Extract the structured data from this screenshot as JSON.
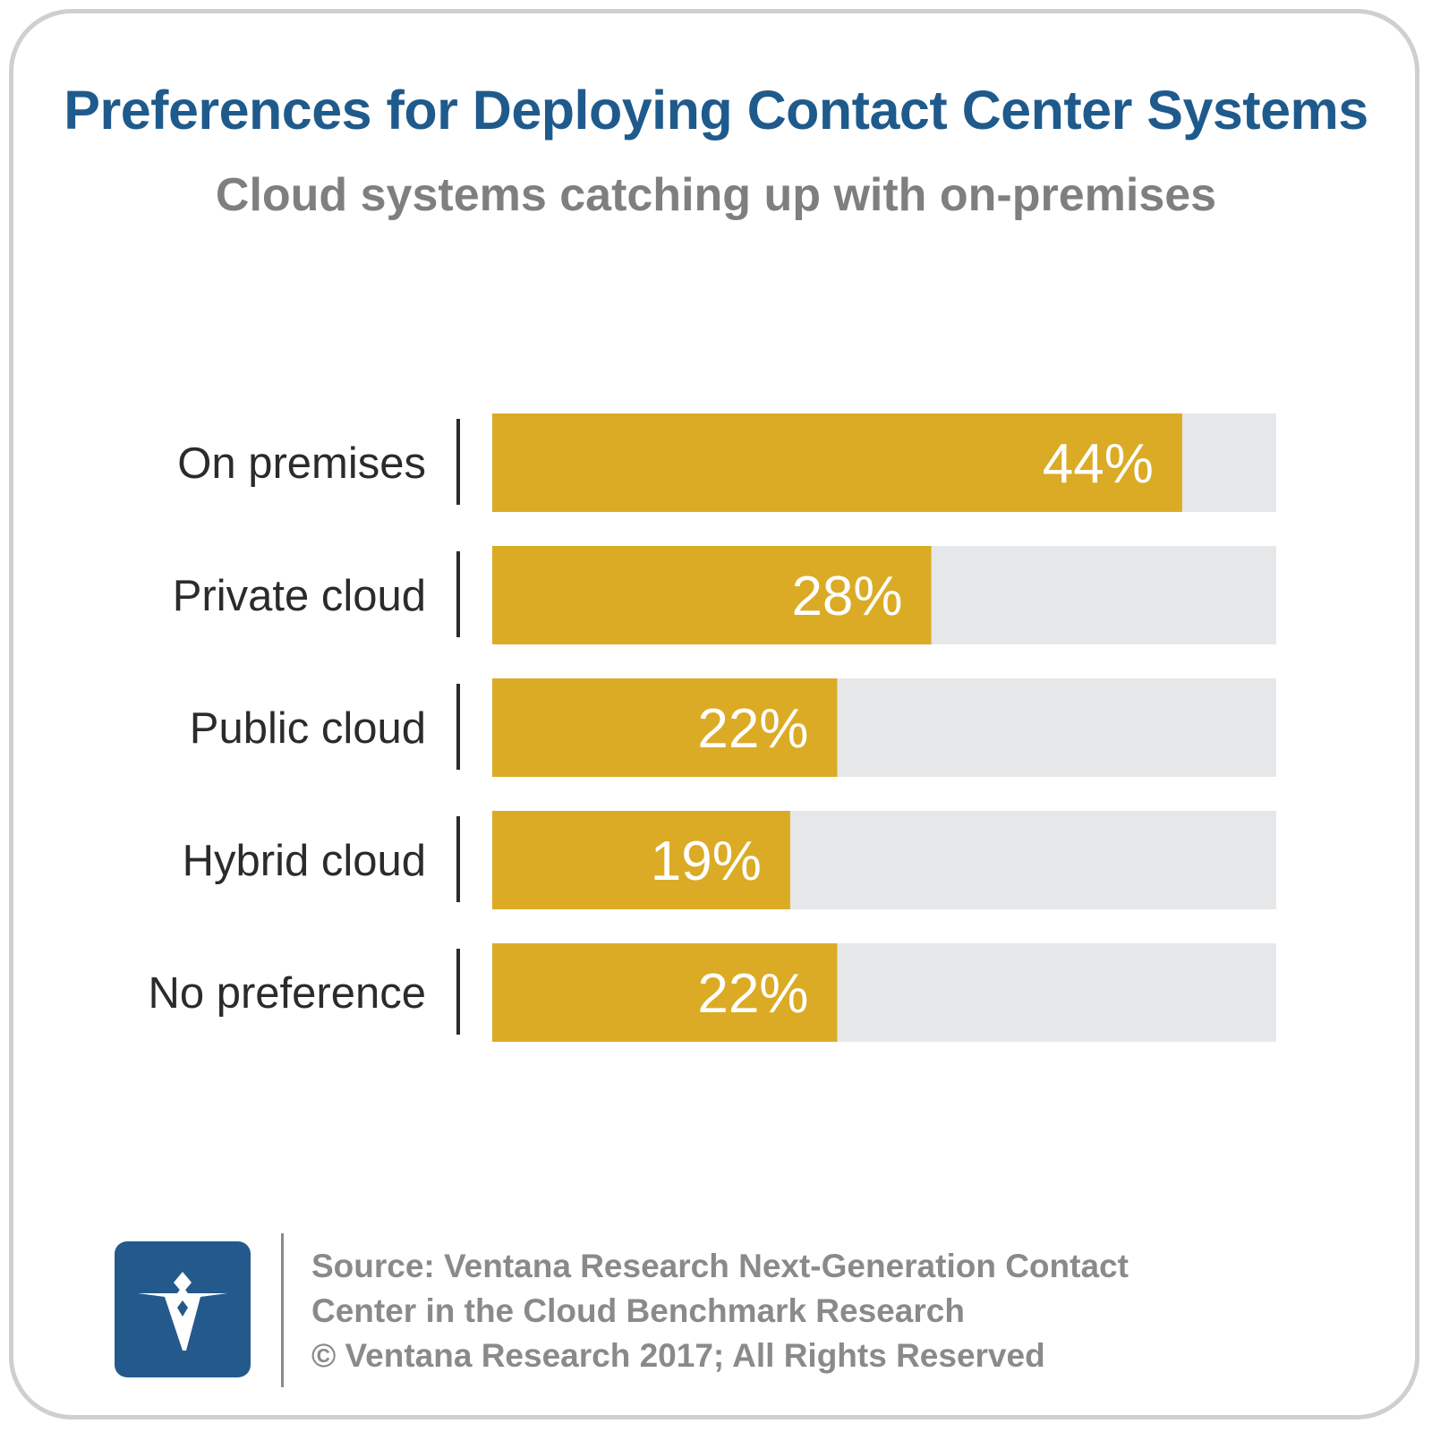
{
  "header": {
    "title": "Preferences for Deploying Contact Center Systems",
    "subtitle": "Cloud systems catching up with on-premises"
  },
  "chart_data": {
    "type": "bar",
    "orientation": "horizontal",
    "title": "Preferences for Deploying Contact Center Systems",
    "subtitle": "Cloud systems catching up with on-premises",
    "categories": [
      "On premises",
      "Private cloud",
      "Public cloud",
      "Hybrid cloud",
      "No preference"
    ],
    "values": [
      44,
      28,
      22,
      19,
      22
    ],
    "value_labels": [
      "44%",
      "28%",
      "22%",
      "19%",
      "22%"
    ],
    "xlim": [
      0,
      50
    ],
    "grid": false,
    "legend": "none",
    "colors": {
      "bar": "#dbab25",
      "track": "#e6e7e8",
      "value_text": "#ffffff"
    }
  },
  "footer": {
    "source_lines": [
      "Source: Ventana Research Next-Generation Contact",
      "Center in the Cloud Benchmark Research",
      "© Ventana Research 2017; All Rights Reserved"
    ]
  }
}
